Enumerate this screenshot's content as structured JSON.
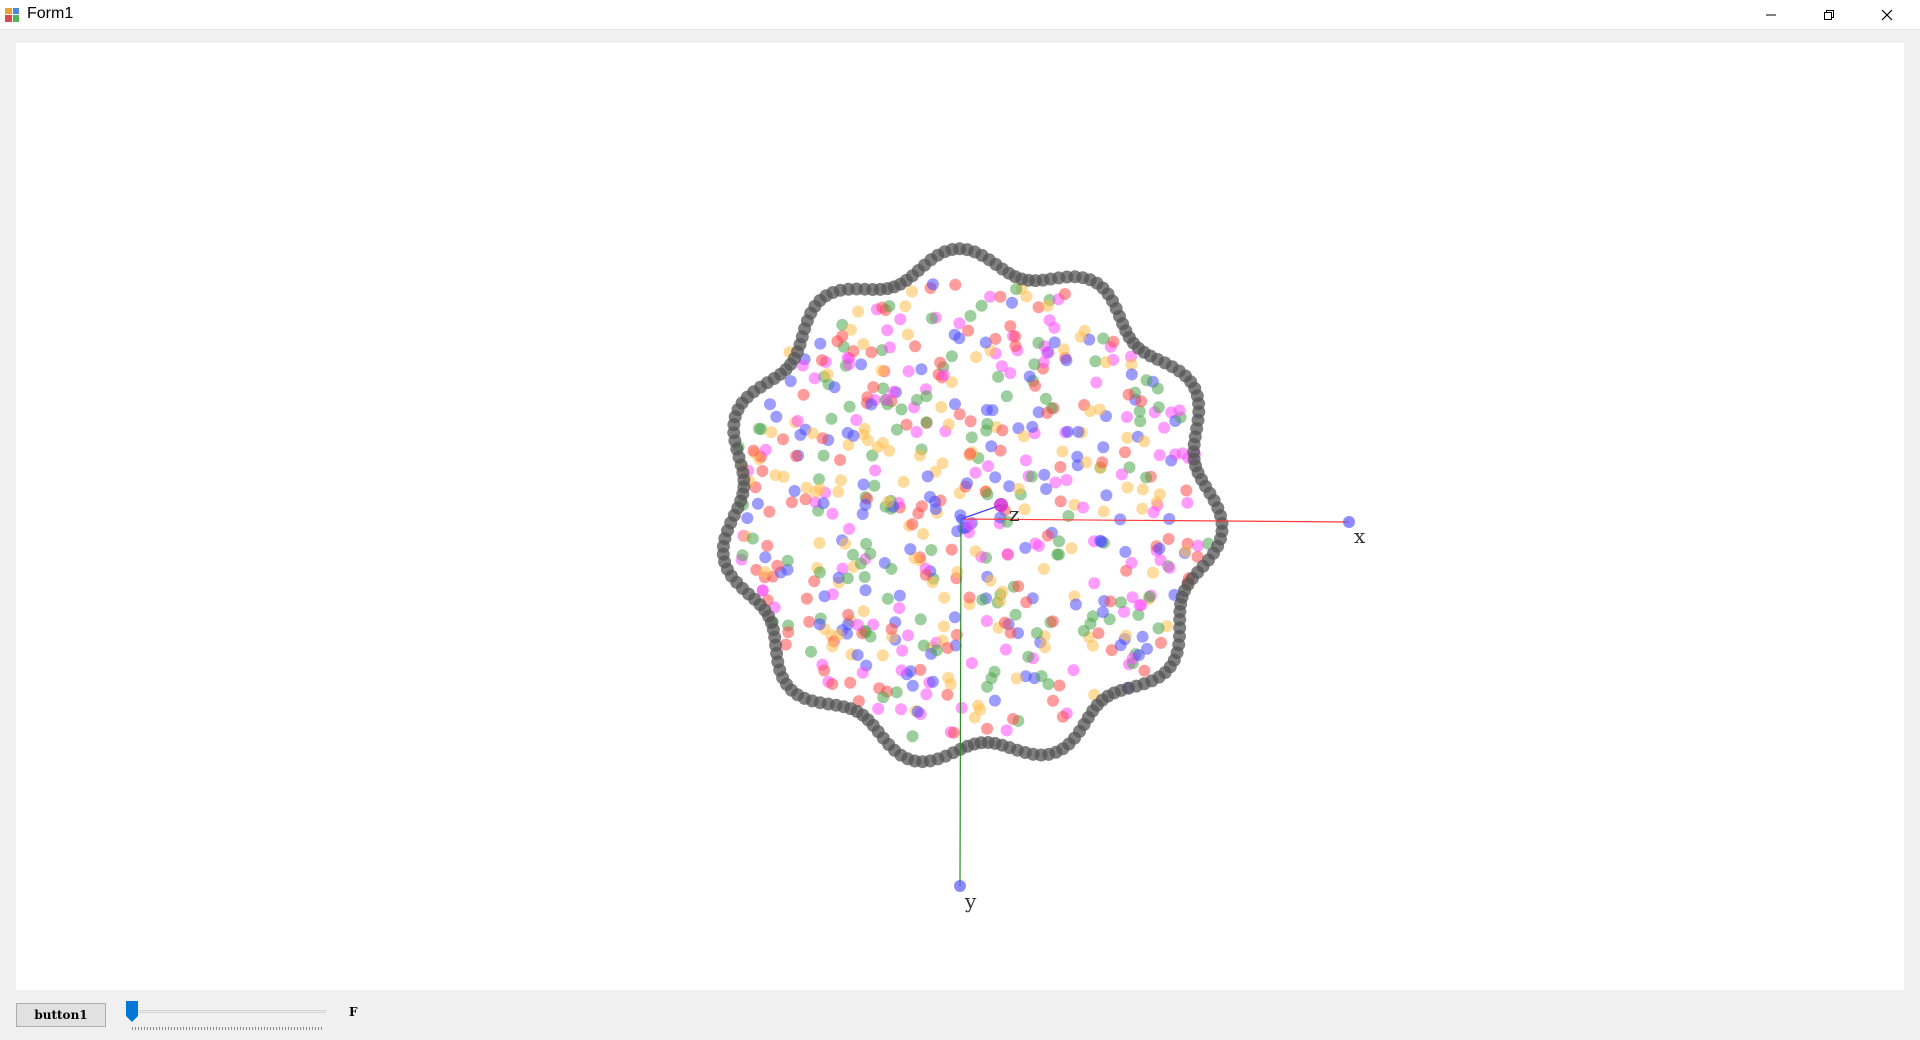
{
  "window": {
    "title": "Form1",
    "icon": "winforms-app-icon",
    "controls": [
      "minimize-icon",
      "restore-icon",
      "close-icon"
    ]
  },
  "scene": {
    "axis_labels": {
      "x": "x",
      "y": "y",
      "z": "z"
    },
    "colors": {
      "x_axis": "#ff3b3b",
      "y_axis": "#2a8a2a",
      "z_axis": "#3a3aff",
      "ring": "#555555",
      "particles": [
        "#ff4d4d",
        "#4d4dff",
        "#ff4dff",
        "#4da64d",
        "#ffc04d"
      ]
    }
  },
  "controls": {
    "button_label": "button1",
    "trackbar_value": 0,
    "label_f": "F",
    "accent": "#0078d7"
  }
}
